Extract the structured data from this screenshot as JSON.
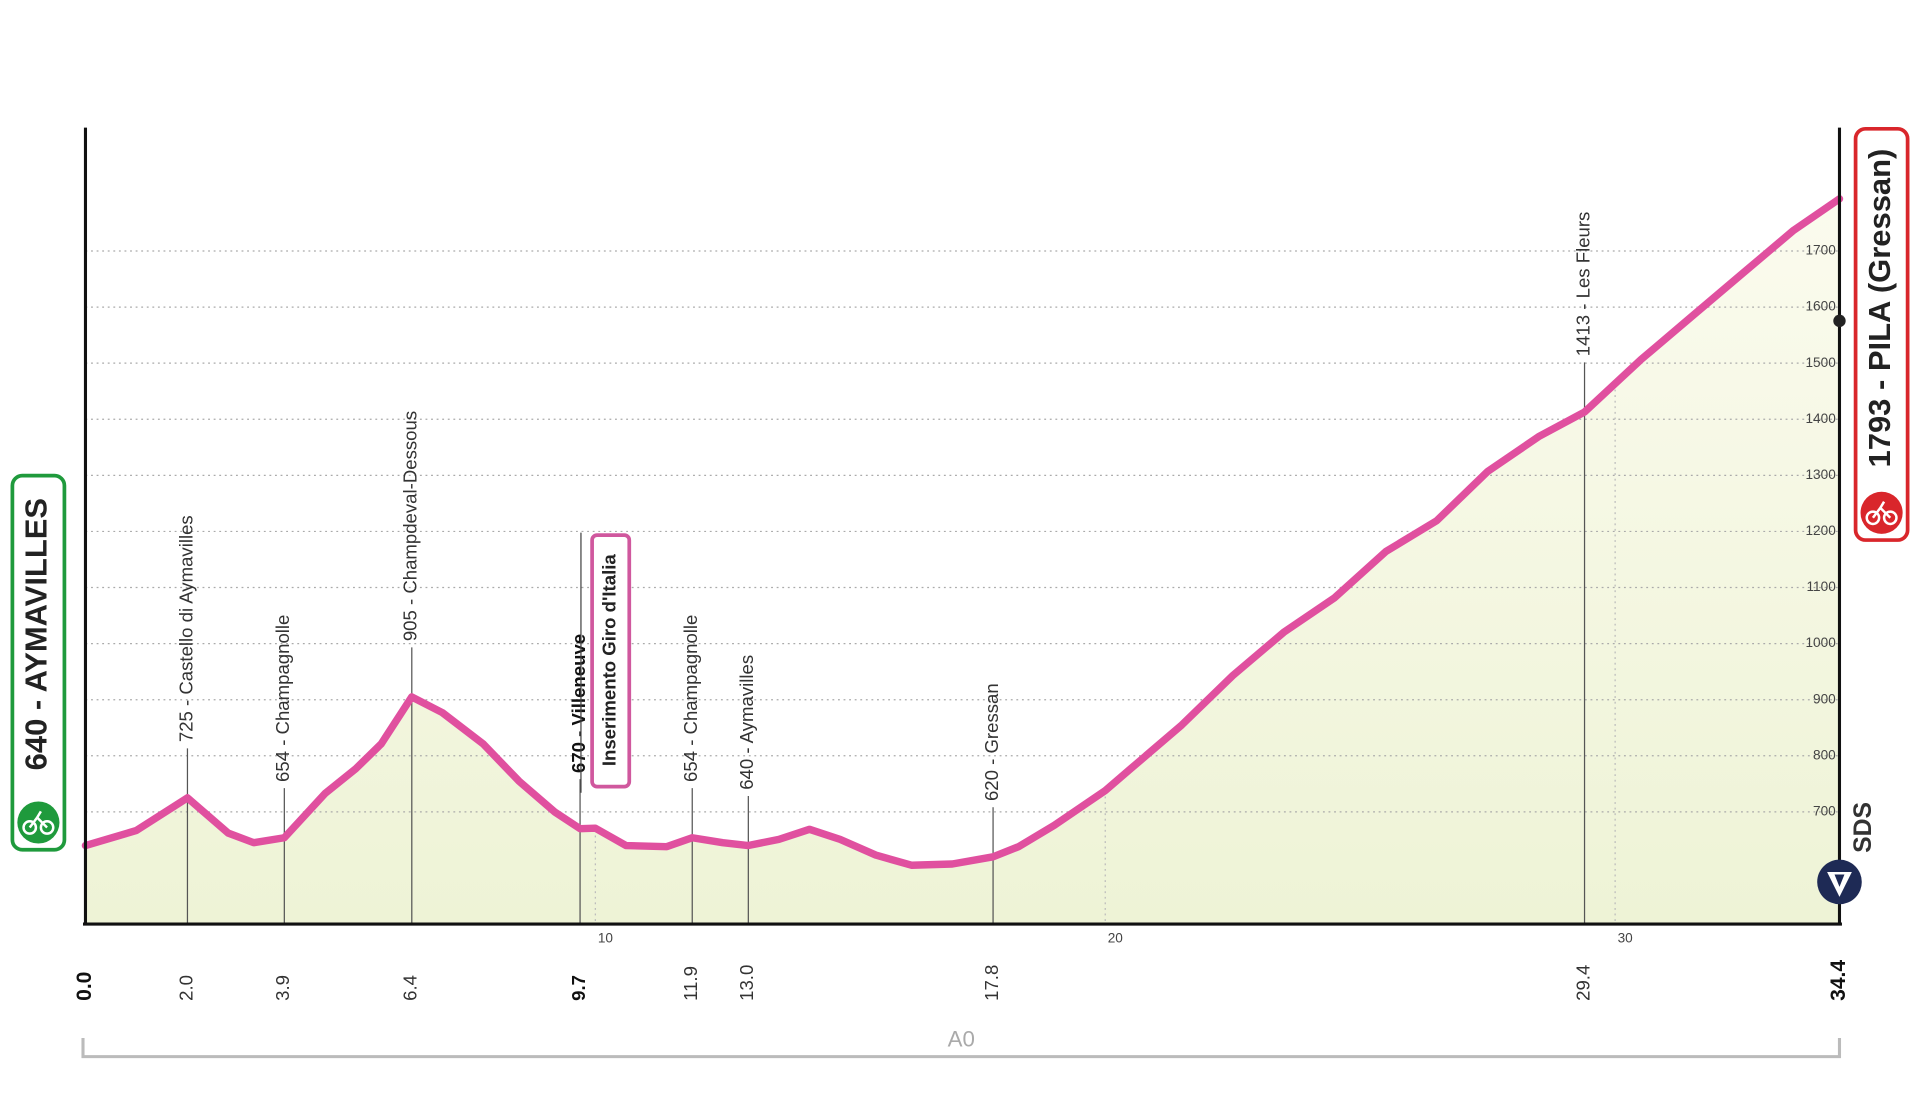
{
  "chart_data": {
    "type": "line",
    "x": [
      0,
      1.0,
      2.0,
      2.8,
      3.3,
      3.9,
      4.7,
      5.3,
      5.8,
      6.4,
      7.0,
      7.8,
      8.5,
      9.2,
      9.7,
      10.0,
      10.6,
      11.4,
      11.9,
      12.5,
      13.0,
      13.6,
      14.2,
      14.8,
      15.5,
      16.2,
      17.0,
      17.8,
      18.3,
      19.0,
      20.0,
      20.5,
      21.5,
      22.5,
      23.5,
      24.5,
      25.5,
      26.5,
      27.5,
      28.5,
      29.4,
      30.5,
      31.5,
      32.5,
      33.5,
      34.4
    ],
    "values": [
      640,
      667,
      725,
      662,
      645,
      654,
      733,
      777,
      821,
      905,
      877,
      821,
      755,
      700,
      670,
      671,
      640,
      638,
      654,
      645,
      640,
      651,
      669,
      651,
      623,
      605,
      607,
      620,
      638,
      676,
      738,
      777,
      855,
      943,
      1020,
      1082,
      1164,
      1219,
      1307,
      1369,
      1413,
      1506,
      1583,
      1660,
      1737,
      1793
    ],
    "color": "#e0509f",
    "xlim": [
      0,
      34.4
    ],
    "ylim": [
      500,
      1920
    ],
    "xticks": [
      10,
      20,
      30
    ],
    "yticks": [
      700,
      800,
      900,
      1000,
      1100,
      1200,
      1300,
      1400,
      1500,
      1600,
      1700
    ],
    "grid": true,
    "start": {
      "name": "640 - AYMAVILLES",
      "km": {
        "value": 0,
        "label": "0.0"
      }
    },
    "finish": {
      "name": "1793 - PILA (Gressan)",
      "km": {
        "value": 34.4,
        "label": "34.4"
      }
    },
    "waypoints": [
      {
        "name": "725 - Castello di Aymavilles",
        "km": {
          "value": 2,
          "label": "2.0"
        }
      },
      {
        "name": "654 - Champagnolle",
        "km": {
          "value": 3.9,
          "label": "3.9"
        }
      },
      {
        "name": "905 - Champdeval-Dessous",
        "km": {
          "value": 6.4,
          "label": "6.4"
        }
      },
      {
        "name": "670 - Villeneuve",
        "km": {
          "value": 9.7,
          "label": "9.7"
        },
        "bold": true
      },
      {
        "name": "654 - Champagnolle",
        "km": {
          "value": 11.9,
          "label": "11.9"
        }
      },
      {
        "name": "640 - Aymavilles",
        "km": {
          "value": 13,
          "label": "13.0"
        }
      },
      {
        "name": "620 - Gressan",
        "km": {
          "value": 17.8,
          "label": "17.8"
        }
      },
      {
        "name": "1413 - Les Fleurs",
        "km": {
          "value": 29.4,
          "label": "29.4"
        }
      }
    ],
    "annotation": "Inserimento Giro d'Italia",
    "brand": "SDS",
    "road": "A0"
  }
}
